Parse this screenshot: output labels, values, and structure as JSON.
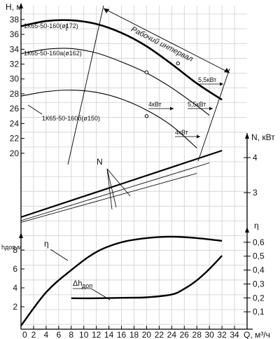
{
  "chart_data": {
    "type": "line",
    "title": "",
    "x_axis": {
      "label": "Q, м³/ч",
      "ticks": [
        2,
        4,
        6,
        8,
        10,
        12,
        14,
        16,
        18,
        20,
        22,
        24,
        26,
        28,
        30,
        32,
        34
      ],
      "range": [
        0,
        36
      ]
    },
    "axes": {
      "head": {
        "label": "H, м",
        "range": [
          18,
          39.5
        ],
        "ticks": [
          20,
          22,
          24,
          26,
          28,
          30,
          32,
          34,
          36,
          38
        ]
      },
      "power": {
        "label": "N, кВт",
        "range": [
          2.1,
          4.8
        ],
        "ticks": [
          3,
          4
        ]
      },
      "efficiency": {
        "label": "η",
        "range": [
          0,
          0.68
        ],
        "ticks": [
          0.1,
          0.2,
          0.3,
          0.4,
          0.5,
          0.6
        ]
      },
      "npsh": {
        "label": "hдоп,м",
        "range": [
          0,
          10
        ],
        "ticks": [
          2,
          4,
          6,
          8
        ]
      }
    },
    "head_curves": [
      {
        "name": "1К65-50-160(ø172)",
        "bold": true,
        "x": [
          0,
          4,
          8,
          12,
          16,
          20,
          24,
          28,
          32
        ],
        "y": [
          37.1,
          37.8,
          37.9,
          37.4,
          36.2,
          34.4,
          32.0,
          29.4,
          27.2
        ]
      },
      {
        "name": "1К65-50-160а(ø162)",
        "bold": false,
        "x": [
          0,
          4,
          8,
          12,
          16,
          20,
          24,
          28,
          30
        ],
        "y": [
          33.4,
          34.0,
          34.1,
          33.5,
          32.3,
          30.8,
          28.8,
          26.4,
          25.1
        ]
      },
      {
        "name": "1К65-50-160б(ø150)",
        "bold": false,
        "x": [
          0,
          4,
          8,
          12,
          16,
          20,
          24,
          28
        ],
        "y": [
          27.7,
          28.3,
          28.5,
          28.2,
          27.3,
          25.8,
          23.7,
          20.7
        ]
      }
    ],
    "operating_points": [
      {
        "x": 20,
        "y": 30.9
      },
      {
        "x": 25,
        "y": 32.1
      },
      {
        "x": 20,
        "y": 25.0
      }
    ],
    "power_curves": [
      {
        "x": [
          0,
          32
        ],
        "y": [
          2.3,
          4.2
        ],
        "bold": true
      },
      {
        "x": [
          0,
          30
        ],
        "y": [
          2.2,
          3.85
        ],
        "bold": false
      },
      {
        "x": [
          0,
          28
        ],
        "y": [
          2.15,
          3.55
        ],
        "bold": false
      }
    ],
    "efficiency_curve": {
      "x": [
        0,
        4,
        8,
        12,
        16,
        20,
        24,
        28,
        32
      ],
      "y": [
        0,
        0.24,
        0.4,
        0.53,
        0.6,
        0.63,
        0.64,
        0.63,
        0.61
      ]
    },
    "npsh_curve": {
      "x": [
        8,
        12,
        16,
        20,
        24,
        26,
        28,
        30,
        32
      ],
      "y": [
        2.9,
        2.9,
        2.95,
        3.0,
        3.3,
        3.9,
        4.8,
        6.0,
        7.4
      ]
    },
    "annotations": {
      "working_interval": "Рабочий интервал",
      "power_labels": [
        "5,5кВт",
        "5,5кВт",
        "4кВт",
        "4кВт"
      ],
      "n_label": "N",
      "eta_label": "η",
      "npsh_label": "Δh",
      "npsh_sub": "доп"
    }
  }
}
